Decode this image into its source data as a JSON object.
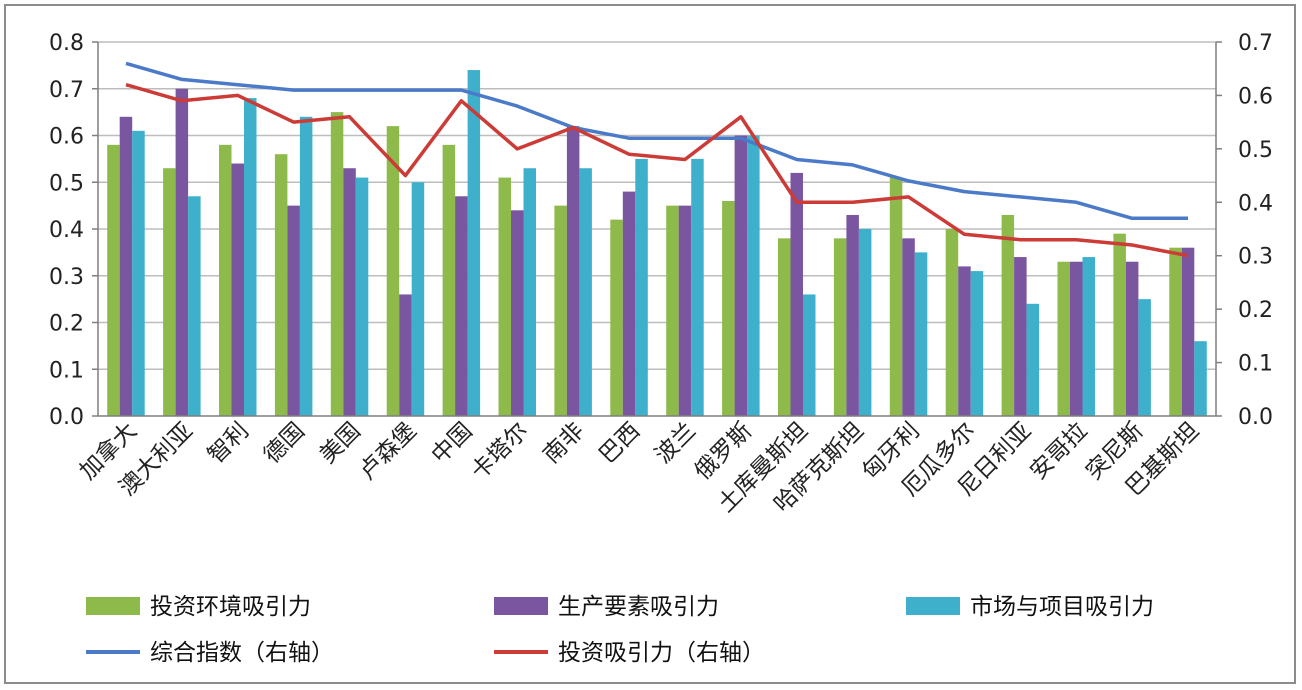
{
  "chart_data": {
    "type": "bar",
    "categories": [
      "加拿大",
      "澳大利亚",
      "智利",
      "德国",
      "美国",
      "卢森堡",
      "中国",
      "卡塔尔",
      "南非",
      "巴西",
      "波兰",
      "俄罗斯",
      "土库曼斯坦",
      "哈萨克斯坦",
      "匈牙利",
      "厄瓜多尔",
      "尼日利亚",
      "安哥拉",
      "突尼斯",
      "巴基斯坦"
    ],
    "bar_series": [
      {
        "name": "投资环境吸引力",
        "color": "#8dba4a",
        "values": [
          0.58,
          0.53,
          0.58,
          0.56,
          0.65,
          0.62,
          0.58,
          0.51,
          0.45,
          0.42,
          0.45,
          0.46,
          0.38,
          0.38,
          0.51,
          0.4,
          0.43,
          0.33,
          0.39,
          0.36
        ]
      },
      {
        "name": "生产要素吸引力",
        "color": "#7a55a0",
        "values": [
          0.64,
          0.7,
          0.54,
          0.45,
          0.53,
          0.26,
          0.47,
          0.44,
          0.62,
          0.48,
          0.45,
          0.6,
          0.52,
          0.43,
          0.38,
          0.32,
          0.34,
          0.33,
          0.33,
          0.36
        ]
      },
      {
        "name": "市场与项目吸引力",
        "color": "#3fb0cc",
        "values": [
          0.61,
          0.47,
          0.68,
          0.64,
          0.51,
          0.5,
          0.74,
          0.53,
          0.53,
          0.55,
          0.55,
          0.6,
          0.26,
          0.4,
          0.35,
          0.31,
          0.24,
          0.34,
          0.25,
          0.16
        ]
      }
    ],
    "line_series": [
      {
        "name": "综合指数（右轴）",
        "color": "#4a7ac8",
        "values": [
          0.66,
          0.63,
          0.62,
          0.61,
          0.61,
          0.61,
          0.61,
          0.58,
          0.54,
          0.52,
          0.52,
          0.52,
          0.48,
          0.47,
          0.44,
          0.42,
          0.41,
          0.4,
          0.37,
          0.37
        ]
      },
      {
        "name": "投资吸引力（右轴）",
        "color": "#cc3b36",
        "values": [
          0.62,
          0.59,
          0.6,
          0.55,
          0.56,
          0.45,
          0.59,
          0.5,
          0.54,
          0.49,
          0.48,
          0.56,
          0.4,
          0.4,
          0.41,
          0.34,
          0.33,
          0.33,
          0.32,
          0.3
        ]
      }
    ],
    "y_left": {
      "min": 0,
      "max": 0.8,
      "ticks": [
        "0.0",
        "0.1",
        "0.2",
        "0.3",
        "0.4",
        "0.5",
        "0.6",
        "0.7",
        "0.8"
      ]
    },
    "y_right": {
      "min": 0,
      "max": 0.7,
      "ticks": [
        "0.0",
        "0.1",
        "0.2",
        "0.3",
        "0.4",
        "0.5",
        "0.6",
        "0.7"
      ]
    },
    "grid": true,
    "legend_position": "bottom"
  }
}
